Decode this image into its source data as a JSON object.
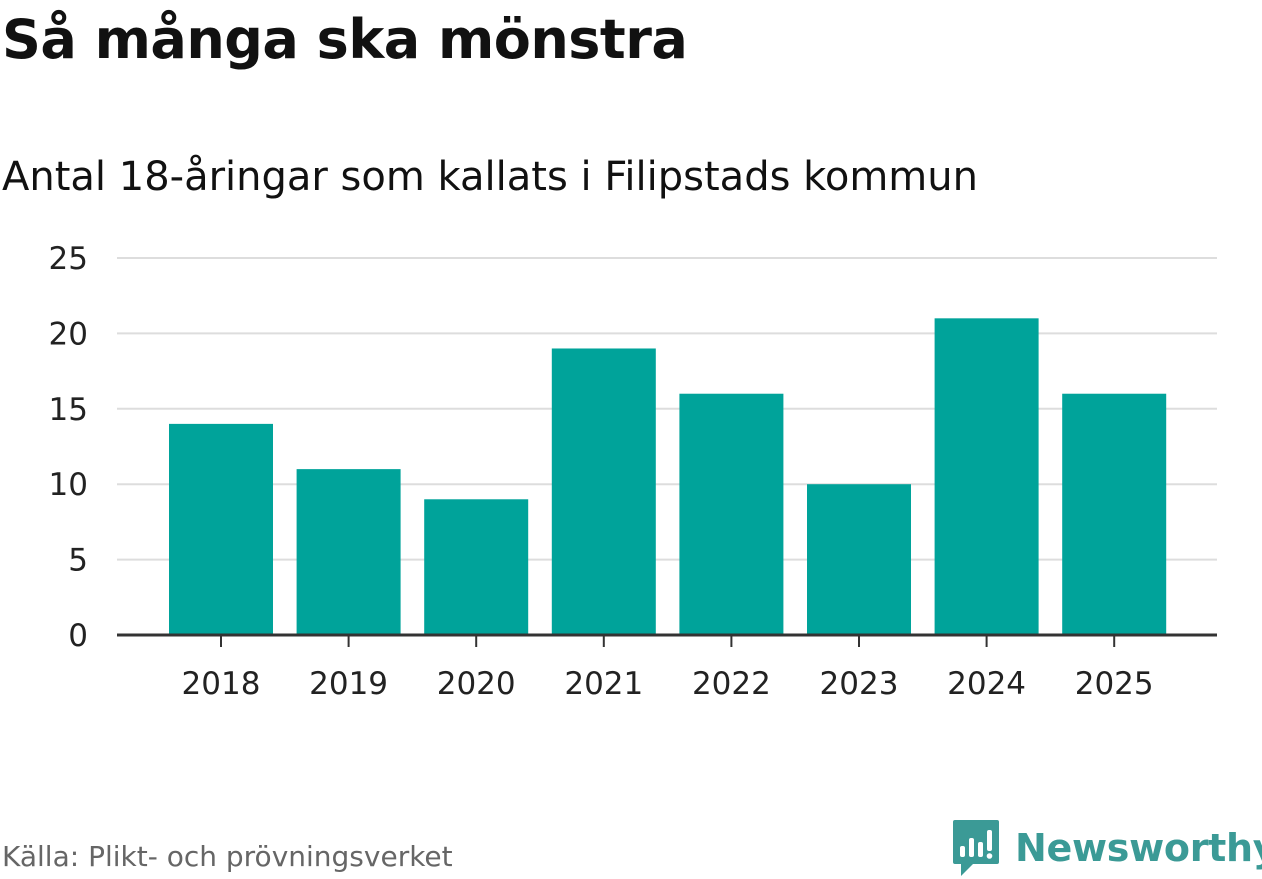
{
  "header": {
    "title": "Så många ska mönstra",
    "subtitle": "Antal 18-åringar som kallats i Filipstads kommun"
  },
  "footer": {
    "source": "Källa: Plikt- och prövningsverket",
    "brand_name": "Newsworthy",
    "brand_icon": "newsworthy-logo-icon"
  },
  "colors": {
    "bar": "#00a39a",
    "grid": "#dddddd",
    "axis": "#333333",
    "brand": "#3b9a96"
  },
  "chart_data": {
    "type": "bar",
    "title": "Så många ska mönstra",
    "subtitle": "Antal 18-åringar som kallats i Filipstads kommun",
    "xlabel": "",
    "ylabel": "",
    "categories": [
      "2018",
      "2019",
      "2020",
      "2021",
      "2022",
      "2023",
      "2024",
      "2025"
    ],
    "values": [
      14,
      11,
      9,
      19,
      16,
      10,
      21,
      16
    ],
    "ylim": [
      0,
      25
    ],
    "yticks": [
      0,
      5,
      10,
      15,
      20,
      25
    ],
    "grid": true,
    "legend": "none"
  }
}
